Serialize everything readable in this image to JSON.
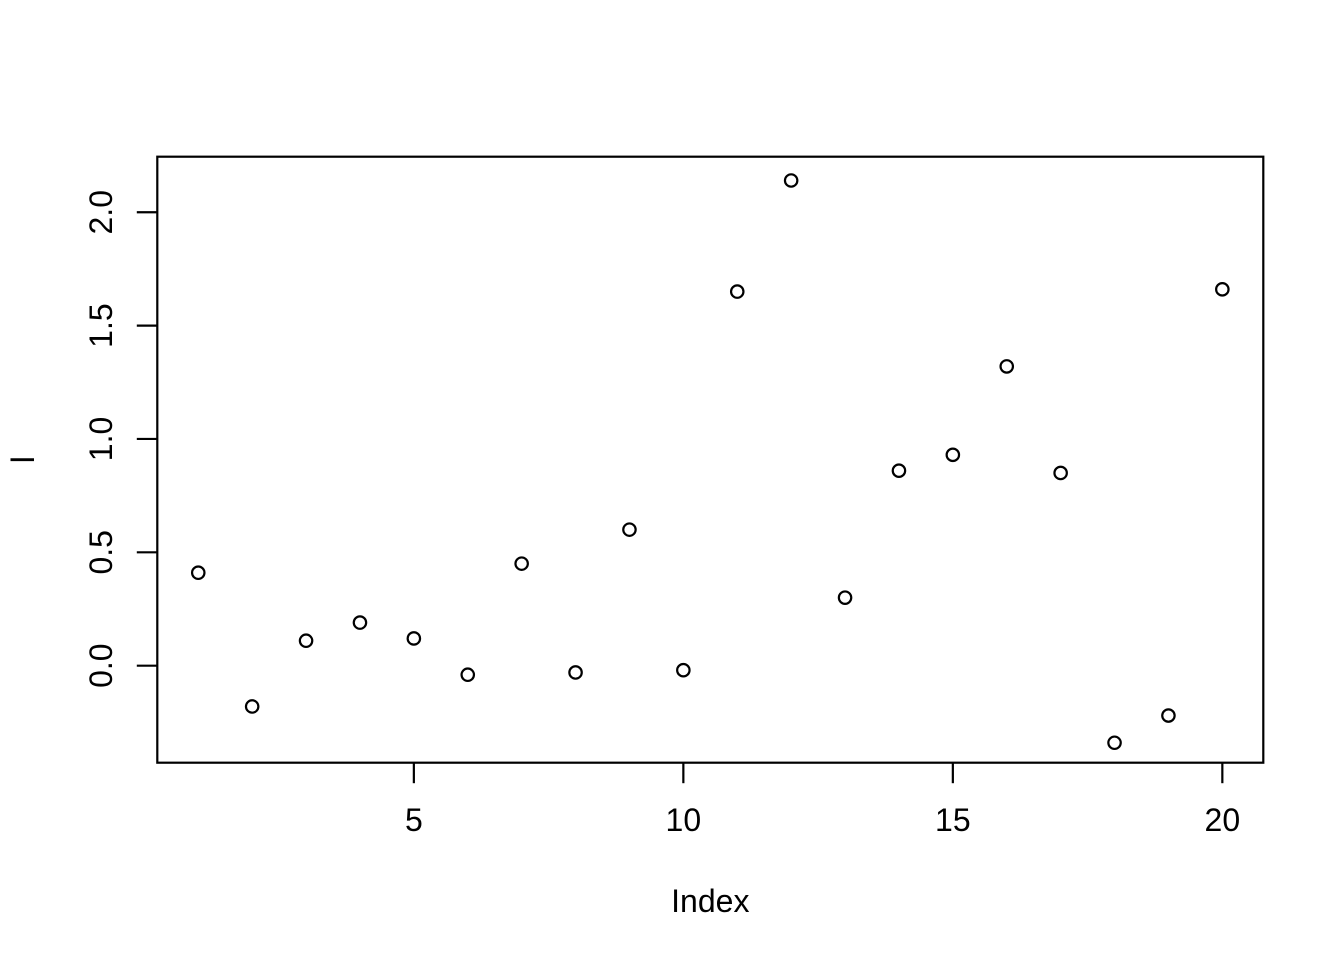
{
  "figure": {
    "background": "#ffffff",
    "foreground": "#000000"
  },
  "chart_data": {
    "type": "scatter",
    "title": "",
    "xlabel": "Index",
    "ylabel": "l",
    "x": [
      1,
      2,
      3,
      4,
      5,
      6,
      7,
      8,
      9,
      10,
      11,
      12,
      13,
      14,
      15,
      16,
      17,
      18,
      19,
      20
    ],
    "y": [
      0.41,
      -0.18,
      0.11,
      0.19,
      0.12,
      -0.04,
      0.45,
      -0.03,
      0.6,
      -0.02,
      1.65,
      2.14,
      0.3,
      0.86,
      0.93,
      1.32,
      0.85,
      -0.34,
      -0.22,
      1.66
    ],
    "xlim": [
      0.24,
      20.76
    ],
    "ylim": [
      -0.428,
      2.245
    ],
    "x_ticks": [
      5,
      10,
      15,
      20
    ],
    "x_tick_labels": [
      "5",
      "10",
      "15",
      "20"
    ],
    "y_ticks": [
      0.0,
      0.5,
      1.0,
      1.5,
      2.0
    ],
    "y_tick_labels": [
      "0.0",
      "0.5",
      "1.0",
      "1.5",
      "2.0"
    ],
    "grid": false,
    "legend": false,
    "marker": "open-circle",
    "marker_color": "#000000",
    "box": true
  }
}
